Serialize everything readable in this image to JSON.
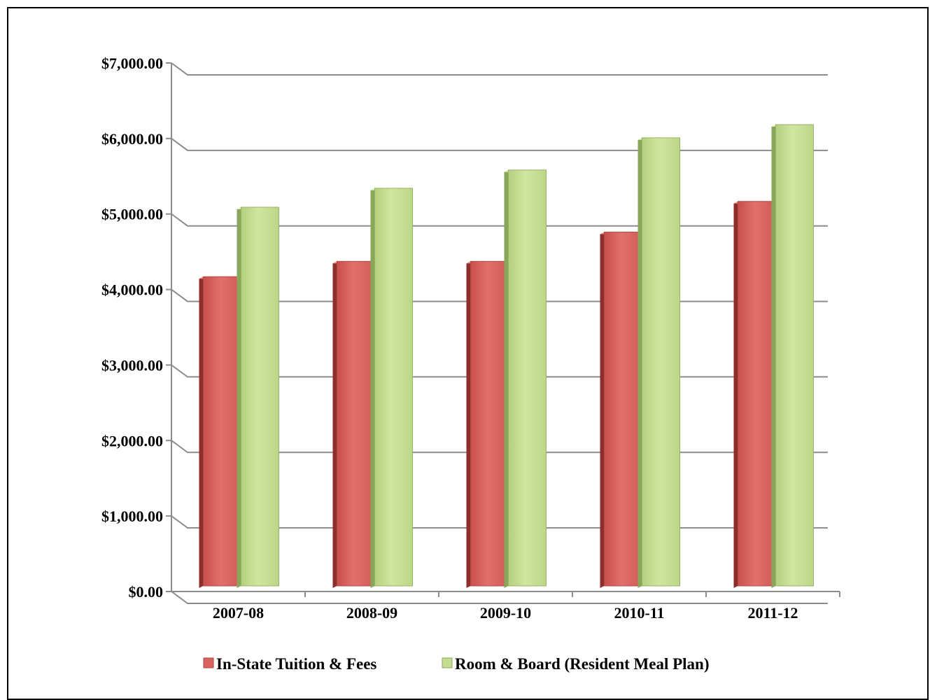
{
  "chart_data": {
    "type": "bar",
    "title": "",
    "xlabel": "",
    "ylabel": "",
    "categories": [
      "2007-08",
      "2008-09",
      "2009-10",
      "2010-11",
      "2011-12"
    ],
    "series": [
      {
        "name": "In-State Tuition & Fees",
        "color": "#d9635f",
        "values": [
          4230,
          4440,
          4440,
          4840,
          5260
        ]
      },
      {
        "name": "Room & Board (Resident Meal Plan)",
        "color": "#c3dc8f",
        "values": [
          5180,
          5440,
          5690,
          6130,
          6310
        ]
      }
    ],
    "ylim": [
      0,
      7000
    ],
    "yticks": [
      0,
      1000,
      2000,
      3000,
      4000,
      5000,
      6000,
      7000
    ],
    "ytick_labels": [
      "$0.00",
      "$1,000.00",
      "$2,000.00",
      "$3,000.00",
      "$4,000.00",
      "$5,000.00",
      "$6,000.00",
      "$7,000.00"
    ],
    "grid": true,
    "legend_position": "bottom"
  }
}
